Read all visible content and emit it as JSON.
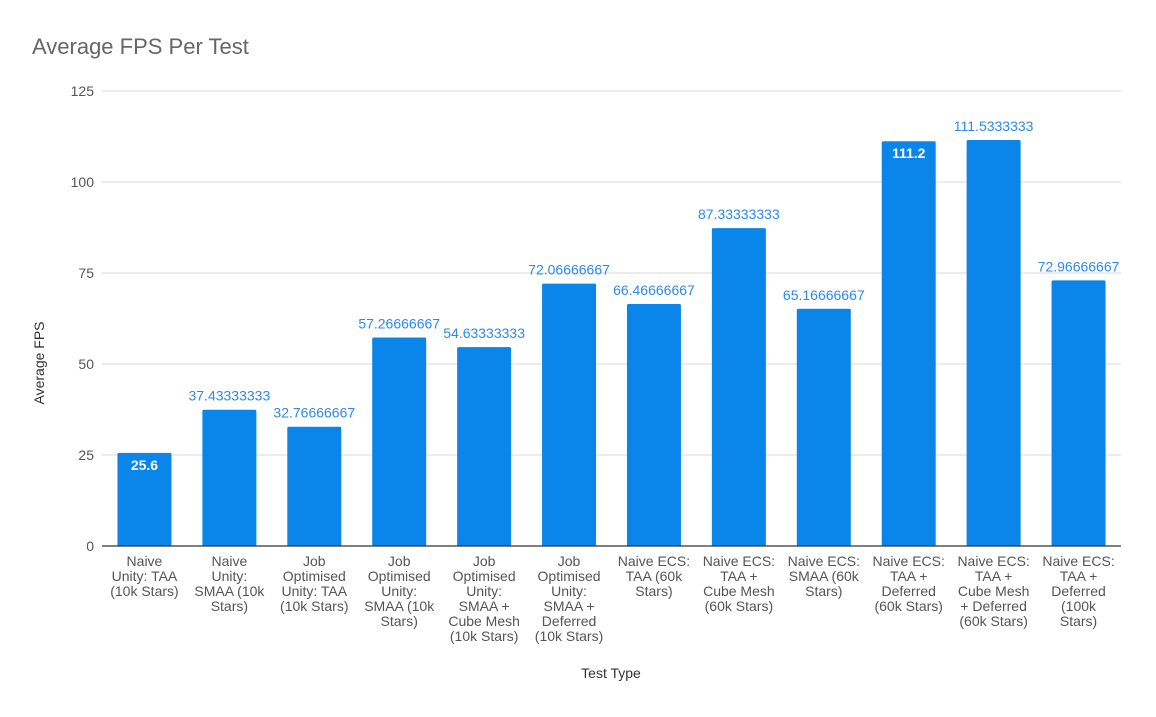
{
  "chart_data": {
    "type": "bar",
    "title": "Average FPS Per Test",
    "xlabel": "Test Type",
    "ylabel": "Average FPS",
    "ylim": [
      0,
      125
    ],
    "yticks": [
      0,
      25,
      50,
      75,
      100,
      125
    ],
    "grid": true,
    "categories": [
      [
        "Naive",
        "Unity: TAA",
        "(10k Stars)"
      ],
      [
        "Naive",
        "Unity:",
        "SMAA (10k",
        "Stars)"
      ],
      [
        "Job",
        "Optimised",
        "Unity: TAA",
        "(10k Stars)"
      ],
      [
        "Job",
        "Optimised",
        "Unity:",
        "SMAA (10k",
        "Stars)"
      ],
      [
        "Job",
        "Optimised",
        "Unity:",
        "SMAA +",
        "Cube Mesh",
        "(10k Stars)"
      ],
      [
        "Job",
        "Optimised",
        "Unity:",
        "SMAA +",
        "Deferred",
        "(10k Stars)"
      ],
      [
        "Naive ECS:",
        "TAA (60k",
        "Stars)"
      ],
      [
        "Naive ECS:",
        "TAA +",
        "Cube Mesh",
        "(60k Stars)"
      ],
      [
        "Naive ECS:",
        "SMAA (60k",
        "Stars)"
      ],
      [
        "Naive ECS:",
        "TAA +",
        "Deferred",
        "(60k Stars)"
      ],
      [
        "Naive ECS:",
        "TAA +",
        "Cube Mesh",
        "+ Deferred",
        "(60k Stars)"
      ],
      [
        "Naive ECS:",
        "TAA +",
        "Deferred",
        "(100k",
        "Stars)"
      ]
    ],
    "values": [
      25.6,
      37.43333333,
      32.76666667,
      57.26666667,
      54.63333333,
      72.06666667,
      66.46666667,
      87.33333333,
      65.16666667,
      111.2,
      111.5333333,
      72.96666667
    ],
    "data_labels": [
      "25.6",
      "37.43333333",
      "32.76666667",
      "57.26666667",
      "54.63333333",
      "72.06666667",
      "66.46666667",
      "87.33333333",
      "65.16666667",
      "111.2",
      "111.5333333",
      "72.96666667"
    ],
    "data_label_inside": [
      true,
      false,
      false,
      false,
      false,
      false,
      false,
      false,
      false,
      true,
      false,
      false
    ],
    "colors": {
      "bar": "#0a86ea",
      "label_outside": "#2e8ae6",
      "label_inside": "#ffffff",
      "grid": "#d9d9d9",
      "axis": "#333333",
      "tick_text": "#555555",
      "title": "#666666",
      "axis_title": "#333333"
    }
  }
}
